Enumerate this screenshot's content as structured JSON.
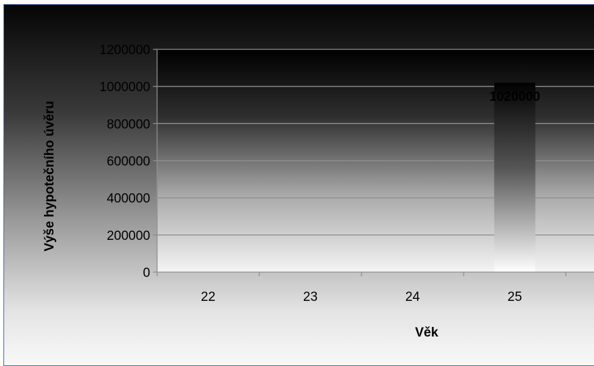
{
  "chart_data": {
    "type": "bar",
    "title": "",
    "xlabel": "Věk",
    "ylabel": "Výše hypotečního úvěru",
    "categories": [
      "22",
      "23",
      "24",
      "25"
    ],
    "values": [
      0,
      0,
      0,
      1020000
    ],
    "data_labels": [
      "",
      "",
      "",
      "1020000"
    ],
    "clipped_label": "8",
    "ylim": [
      0,
      1200000
    ],
    "yticks": [
      "0",
      "200000",
      "400000",
      "600000",
      "800000",
      "1000000",
      "1200000"
    ],
    "grid": true,
    "legend": "none"
  },
  "colors": {
    "frame_border": "#3e6aa6",
    "grid": "#8f8f8f",
    "text": "#000000"
  }
}
